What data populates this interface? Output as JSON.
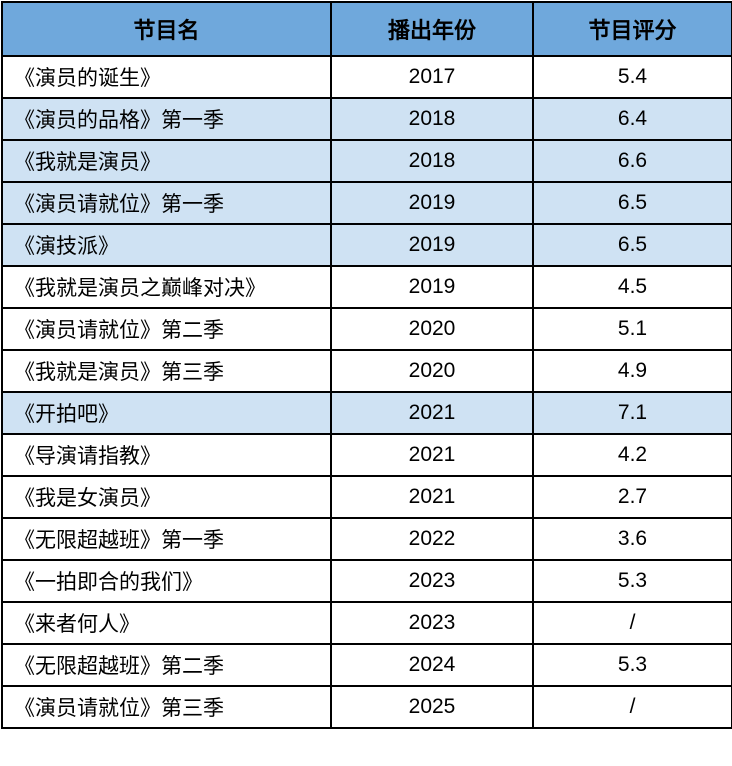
{
  "colors": {
    "header_bg": "#6FA8DC",
    "highlight_bg": "#CFE2F3",
    "row_bg": "#FFFFFF",
    "border": "#000000",
    "text": "#000000"
  },
  "chart_data": {
    "type": "table",
    "columns": [
      "节目名",
      "播出年份",
      "节目评分"
    ],
    "rows": [
      {
        "name": "《演员的诞生》",
        "year": "2017",
        "rating": "5.4",
        "highlighted": false
      },
      {
        "name": "《演员的品格》第一季",
        "year": "2018",
        "rating": "6.4",
        "highlighted": true
      },
      {
        "name": "《我就是演员》",
        "year": "2018",
        "rating": "6.6",
        "highlighted": true
      },
      {
        "name": "《演员请就位》第一季",
        "year": "2019",
        "rating": "6.5",
        "highlighted": true
      },
      {
        "name": "《演技派》",
        "year": "2019",
        "rating": "6.5",
        "highlighted": true
      },
      {
        "name": "《我就是演员之巅峰对决》",
        "year": "2019",
        "rating": "4.5",
        "highlighted": false
      },
      {
        "name": "《演员请就位》第二季",
        "year": "2020",
        "rating": "5.1",
        "highlighted": false
      },
      {
        "name": "《我就是演员》第三季",
        "year": "2020",
        "rating": "4.9",
        "highlighted": false
      },
      {
        "name": "《开拍吧》",
        "year": "2021",
        "rating": "7.1",
        "highlighted": true
      },
      {
        "name": "《导演请指教》",
        "year": "2021",
        "rating": "4.2",
        "highlighted": false
      },
      {
        "name": "《我是女演员》",
        "year": "2021",
        "rating": "2.7",
        "highlighted": false
      },
      {
        "name": "《无限超越班》第一季",
        "year": "2022",
        "rating": "3.6",
        "highlighted": false
      },
      {
        "name": "《一拍即合的我们》",
        "year": "2023",
        "rating": "5.3",
        "highlighted": false
      },
      {
        "name": "《来者何人》",
        "year": "2023",
        "rating": "/",
        "highlighted": false
      },
      {
        "name": "《无限超越班》第二季",
        "year": "2024",
        "rating": "5.3",
        "highlighted": false
      },
      {
        "name": "《演员请就位》第三季",
        "year": "2025",
        "rating": "/",
        "highlighted": false
      }
    ]
  }
}
